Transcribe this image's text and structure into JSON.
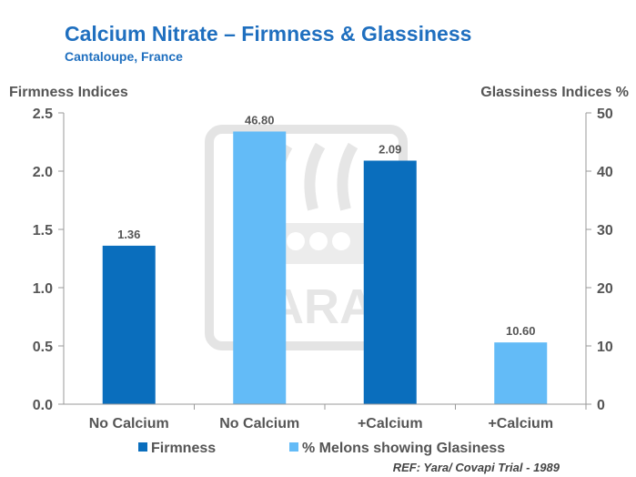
{
  "chart_data": {
    "type": "bar",
    "title": "Calcium Nitrate – Firmness & Glassiness",
    "subtitle": "Cantaloupe,  France",
    "ylabel_left": "Firmness Indices",
    "ylabel_right": "Glassiness Indices %",
    "categories": [
      "No Calcium",
      "No Calcium",
      "+Calcium",
      "+Calcium"
    ],
    "ylim_left": [
      0,
      2.5
    ],
    "yticks_left": [
      "0.0",
      "0.5",
      "1.0",
      "1.5",
      "2.0",
      "2.5"
    ],
    "ylim_right": [
      0,
      50
    ],
    "yticks_right": [
      "0",
      "10",
      "20",
      "30",
      "40",
      "50"
    ],
    "bars": [
      {
        "category": "No Calcium",
        "series": "Firmness",
        "axis": "left",
        "value": 1.36,
        "label": "1.36",
        "color": "#0a6ebd"
      },
      {
        "category": "No Calcium",
        "series": "% Melons showing Glasiness",
        "axis": "right",
        "value": 46.8,
        "label": "46.80",
        "color": "#63bbf7"
      },
      {
        "category": "+Calcium",
        "series": "Firmness",
        "axis": "left",
        "value": 2.09,
        "label": "2.09",
        "color": "#0a6ebd"
      },
      {
        "category": "+Calcium",
        "series": "% Melons showing Glasiness",
        "axis": "right",
        "value": 10.6,
        "label": "10.60",
        "color": "#63bbf7"
      }
    ],
    "legend": [
      {
        "name": "Firmness",
        "color": "#0a6ebd"
      },
      {
        "name": "% Melons showing Glasiness",
        "color": "#63bbf7"
      }
    ],
    "legend_position": "bottom",
    "grid": false
  },
  "watermark": "YARA",
  "reference": "REF: Yara/ Covapi Trial - 1989"
}
